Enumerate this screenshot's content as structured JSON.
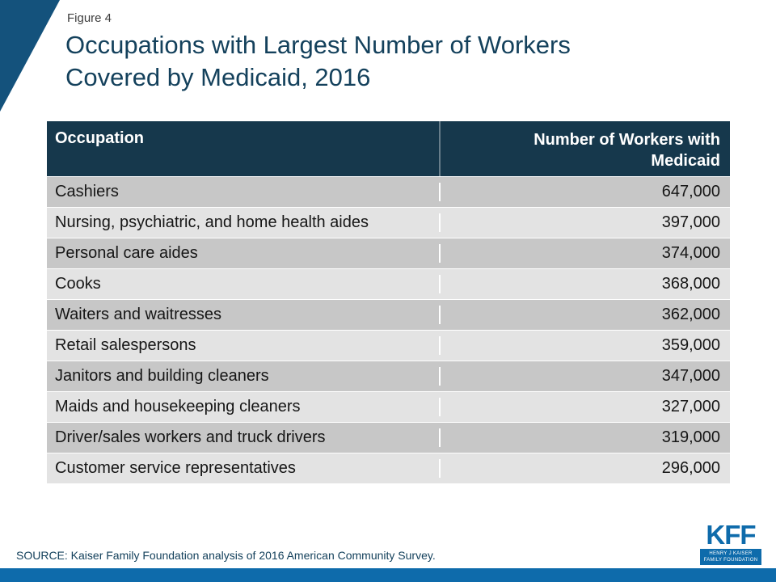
{
  "figure_label": "Figure 4",
  "title_lines": [
    "Occupations with Largest Number of Workers",
    "Covered by Medicaid, 2016"
  ],
  "table": {
    "headers": [
      "Occupation",
      "Number of Workers with Medicaid"
    ],
    "rows": [
      {
        "occupation": "Cashiers",
        "value": "647,000"
      },
      {
        "occupation": "Nursing, psychiatric, and home health aides",
        "value": "397,000"
      },
      {
        "occupation": "Personal care aides",
        "value": "374,000"
      },
      {
        "occupation": "Cooks",
        "value": "368,000"
      },
      {
        "occupation": "Waiters and waitresses",
        "value": "362,000"
      },
      {
        "occupation": "Retail salespersons",
        "value": "359,000"
      },
      {
        "occupation": "Janitors and building cleaners",
        "value": "347,000"
      },
      {
        "occupation": "Maids and housekeeping cleaners",
        "value": "327,000"
      },
      {
        "occupation": "Driver/sales workers and truck drivers",
        "value": "319,000"
      },
      {
        "occupation": "Customer service representatives",
        "value": "296,000"
      }
    ]
  },
  "source": "SOURCE: Kaiser Family Foundation analysis of 2016 American Community Survey.",
  "logo": {
    "text": "KFF",
    "line1": "HENRY J KAISER",
    "line2": "FAMILY FOUNDATION"
  },
  "colors": {
    "header_navy": "#16384c",
    "title_navy": "#14415c",
    "triangle_blue": "#14527c",
    "kff_blue": "#0e6bab",
    "row_dark_gray": "#c7c7c7",
    "row_light_gray": "#e3e3e3"
  },
  "chart_data": {
    "type": "table",
    "title": "Occupations with Largest Number of Workers Covered by Medicaid, 2016",
    "columns": [
      "Occupation",
      "Number of Workers with Medicaid"
    ],
    "categories": [
      "Cashiers",
      "Nursing, psychiatric, and home health aides",
      "Personal care aides",
      "Cooks",
      "Waiters and waitresses",
      "Retail salespersons",
      "Janitors and building cleaners",
      "Maids and housekeeping cleaners",
      "Driver/sales workers and truck drivers",
      "Customer service representatives"
    ],
    "values": [
      647000,
      397000,
      374000,
      368000,
      362000,
      359000,
      347000,
      327000,
      319000,
      296000
    ]
  }
}
